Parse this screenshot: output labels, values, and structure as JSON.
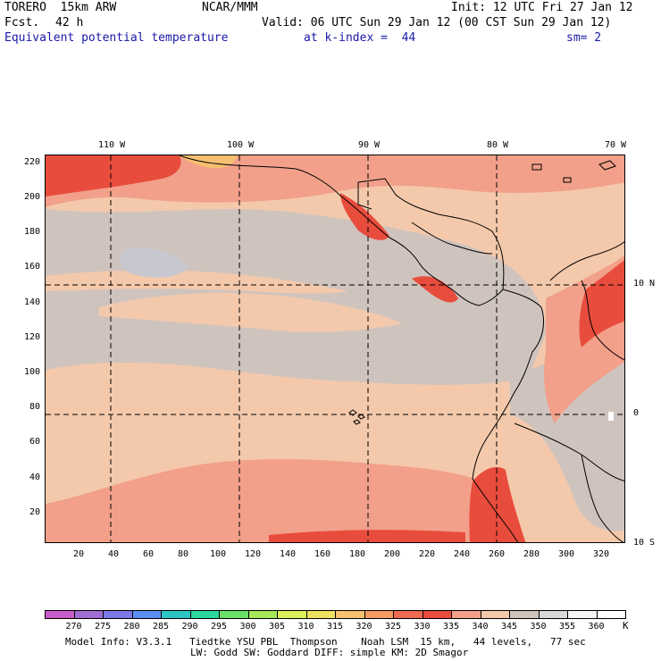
{
  "header": {
    "model": "TORERO  15km ARW",
    "center": "NCAR/MMM",
    "init": "Init: 12 UTC Fri 27 Jan 12",
    "fcst_label": "Fcst.",
    "fcst_value": "42 h",
    "valid": "Valid: 06 UTC Sun 29 Jan 12 (00 CST Sun 29 Jan 12)",
    "field": "Equivalent potential temperature",
    "level": "at k-index =  44",
    "smoothing": "sm= 2"
  },
  "map": {
    "lon_labels": [
      "110 W",
      "100 W",
      "90 W",
      "80 W",
      "70 W"
    ],
    "lat_labels": [
      "10 N",
      "0",
      "10 S"
    ],
    "x_ticks": [
      "20",
      "40",
      "60",
      "80",
      "100",
      "120",
      "140",
      "160",
      "180",
      "200",
      "220",
      "240",
      "260",
      "280",
      "300",
      "320"
    ],
    "y_ticks": [
      "220",
      "200",
      "180",
      "160",
      "140",
      "120",
      "100",
      "80",
      "60",
      "40",
      "20"
    ],
    "colors": {
      "c335": "#e84c3c",
      "c340": "#f2a08a",
      "c345": "#f4c9ab",
      "c350": "#cfc3be",
      "c355": "#c7c7cf",
      "coast": "#000000",
      "grid": "#000000"
    }
  },
  "colorbar": {
    "unit": "K",
    "labels": [
      "270",
      "275",
      "280",
      "285",
      "290",
      "295",
      "300",
      "305",
      "310",
      "315",
      "320",
      "325",
      "330",
      "335",
      "340",
      "345",
      "350",
      "355",
      "360"
    ],
    "colors": [
      "#c85cc8",
      "#a06ed2",
      "#7a78e6",
      "#5a8ef0",
      "#2ec4c4",
      "#2ed6a0",
      "#6ae06a",
      "#a6e85a",
      "#dcf05a",
      "#f0e060",
      "#f6c070",
      "#f49a62",
      "#ee6a50",
      "#e84c3c",
      "#f2a08a",
      "#f4c9ab",
      "#cfc3be",
      "#d8d8d8",
      "#f4f4f4",
      "#ffffff"
    ]
  },
  "footer": {
    "line1": "Model Info: V3.3.1   Tiedtke YSU PBL  Thompson    Noah LSM  15 km,   44 levels,   77 sec",
    "line2": "LW: Godd SW: Goddard DIFF: simple KM: 2D Smagor"
  }
}
